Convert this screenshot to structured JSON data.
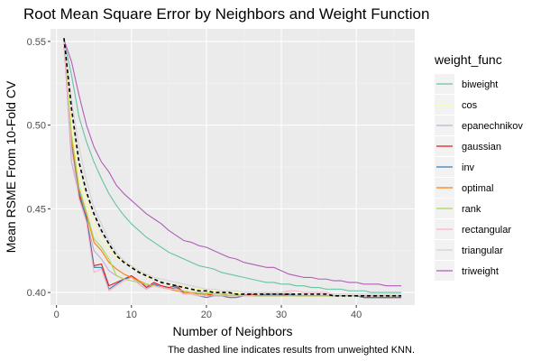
{
  "chart_data": {
    "type": "line",
    "title": "Root Mean Square Error by Neighbors and Weight Function",
    "xlabel": "Number of Neighbors",
    "ylabel": "Mean RSME From 10-Fold CV",
    "caption": "The dashed line indicates results from unweighted KNN.",
    "xlim": [
      -0.8,
      47.8
    ],
    "ylim": [
      0.3925,
      0.5575
    ],
    "x_ticks": [
      0,
      10,
      20,
      30,
      40
    ],
    "y_ticks": [
      0.4,
      0.45,
      0.5,
      0.55
    ],
    "x_tick_labels": [
      "0",
      "10",
      "20",
      "30",
      "40"
    ],
    "y_tick_labels": [
      "0.40",
      "0.45",
      "0.50",
      "0.55"
    ],
    "grid": true,
    "legend": {
      "title": "weight_func",
      "position": "right"
    },
    "x": [
      1,
      2,
      3,
      4,
      5,
      6,
      7,
      8,
      9,
      10,
      11,
      12,
      13,
      14,
      15,
      16,
      17,
      18,
      19,
      20,
      21,
      22,
      23,
      24,
      25,
      26,
      27,
      28,
      29,
      30,
      31,
      32,
      33,
      34,
      35,
      36,
      37,
      38,
      39,
      40,
      41,
      42,
      43,
      44,
      45,
      46
    ],
    "series": [
      {
        "name": "biweight",
        "color": "#66C2A5",
        "values": [
          0.551,
          0.53,
          0.505,
          0.49,
          0.478,
          0.468,
          0.459,
          0.452,
          0.446,
          0.441,
          0.437,
          0.433,
          0.43,
          0.427,
          0.424,
          0.422,
          0.42,
          0.418,
          0.416,
          0.415,
          0.414,
          0.412,
          0.411,
          0.41,
          0.409,
          0.408,
          0.407,
          0.406,
          0.406,
          0.405,
          0.405,
          0.404,
          0.404,
          0.403,
          0.403,
          0.402,
          0.402,
          0.402,
          0.401,
          0.401,
          0.401,
          0.4,
          0.4,
          0.4,
          0.4,
          0.4
        ]
      },
      {
        "name": "cos",
        "color": "#FFFF99",
        "values": [
          0.55,
          0.5,
          0.47,
          0.455,
          0.44,
          0.432,
          0.426,
          0.421,
          0.418,
          0.415,
          0.412,
          0.41,
          0.408,
          0.406,
          0.405,
          0.404,
          0.403,
          0.402,
          0.402,
          0.401,
          0.401,
          0.4,
          0.4,
          0.4,
          0.399,
          0.399,
          0.399,
          0.399,
          0.399,
          0.399,
          0.399,
          0.399,
          0.399,
          0.399,
          0.399,
          0.399,
          0.399,
          0.399,
          0.399,
          0.399,
          0.399,
          0.399,
          0.399,
          0.399,
          0.399,
          0.399
        ]
      },
      {
        "name": "epanechnikov",
        "color": "#BEAED4",
        "values": [
          0.549,
          0.478,
          0.458,
          0.443,
          0.425,
          0.42,
          0.413,
          0.41,
          0.408,
          0.41,
          0.406,
          0.404,
          0.405,
          0.404,
          0.402,
          0.403,
          0.4,
          0.4,
          0.4,
          0.398,
          0.399,
          0.399,
          0.398,
          0.398,
          0.399,
          0.398,
          0.398,
          0.399,
          0.398,
          0.399,
          0.399,
          0.398,
          0.398,
          0.398,
          0.398,
          0.398,
          0.398,
          0.398,
          0.398,
          0.398,
          0.397,
          0.398,
          0.397,
          0.397,
          0.398,
          0.397
        ]
      },
      {
        "name": "gaussian",
        "color": "#E41A1C",
        "values": [
          0.549,
          0.488,
          0.458,
          0.445,
          0.416,
          0.417,
          0.404,
          0.406,
          0.408,
          0.41,
          0.407,
          0.403,
          0.406,
          0.404,
          0.403,
          0.404,
          0.4,
          0.4,
          0.399,
          0.399,
          0.398,
          0.398,
          0.398,
          0.398,
          0.398,
          0.399,
          0.398,
          0.398,
          0.398,
          0.398,
          0.399,
          0.398,
          0.398,
          0.398,
          0.398,
          0.398,
          0.398,
          0.398,
          0.398,
          0.398,
          0.397,
          0.397,
          0.397,
          0.397,
          0.397,
          0.397
        ]
      },
      {
        "name": "inv",
        "color": "#377EB8",
        "values": [
          0.549,
          0.49,
          0.46,
          0.444,
          0.415,
          0.415,
          0.402,
          0.405,
          0.408,
          0.409,
          0.405,
          0.402,
          0.405,
          0.403,
          0.402,
          0.403,
          0.399,
          0.399,
          0.398,
          0.397,
          0.398,
          0.398,
          0.397,
          0.397,
          0.398,
          0.398,
          0.398,
          0.399,
          0.399,
          0.399,
          0.399,
          0.398,
          0.398,
          0.398,
          0.398,
          0.398,
          0.398,
          0.398,
          0.398,
          0.398,
          0.397,
          0.397,
          0.397,
          0.397,
          0.397,
          0.397
        ]
      },
      {
        "name": "optimal",
        "color": "#FF7F00",
        "values": [
          0.549,
          0.492,
          0.462,
          0.447,
          0.43,
          0.425,
          0.418,
          0.414,
          0.411,
          0.409,
          0.407,
          0.405,
          0.404,
          0.403,
          0.402,
          0.401,
          0.4,
          0.4,
          0.399,
          0.399,
          0.399,
          0.399,
          0.398,
          0.398,
          0.398,
          0.398,
          0.398,
          0.398,
          0.398,
          0.398,
          0.398,
          0.398,
          0.398,
          0.398,
          0.398,
          0.398,
          0.398,
          0.398,
          0.398,
          0.398,
          0.398,
          0.398,
          0.398,
          0.398,
          0.398,
          0.398
        ]
      },
      {
        "name": "rank",
        "color": "#A6D854",
        "values": [
          0.549,
          0.495,
          0.463,
          0.448,
          0.432,
          0.427,
          0.42,
          0.41,
          0.408,
          0.407,
          0.406,
          0.405,
          0.404,
          0.403,
          0.402,
          0.402,
          0.401,
          0.4,
          0.4,
          0.4,
          0.399,
          0.399,
          0.399,
          0.399,
          0.398,
          0.398,
          0.398,
          0.398,
          0.398,
          0.398,
          0.398,
          0.398,
          0.398,
          0.398,
          0.398,
          0.398,
          0.398,
          0.398,
          0.398,
          0.398,
          0.398,
          0.398,
          0.398,
          0.398,
          0.398,
          0.398
        ]
      },
      {
        "name": "rectangular",
        "color": "#FBB4C3",
        "values": [
          0.549,
          0.486,
          0.456,
          0.442,
          0.412,
          0.414,
          0.401,
          0.404,
          0.407,
          0.409,
          0.405,
          0.402,
          0.404,
          0.403,
          0.402,
          0.402,
          0.399,
          0.399,
          0.398,
          0.398,
          0.398,
          0.398,
          0.398,
          0.398,
          0.398,
          0.398,
          0.399,
          0.4,
          0.4,
          0.4,
          0.401,
          0.401,
          0.4,
          0.4,
          0.4,
          0.4,
          0.399,
          0.399,
          0.399,
          0.399,
          0.399,
          0.399,
          0.399,
          0.399,
          0.399,
          0.399
        ]
      },
      {
        "name": "triangular",
        "color": "#D3D3D3",
        "values": [
          0.55,
          0.515,
          0.487,
          0.467,
          0.451,
          0.441,
          0.431,
          0.424,
          0.419,
          0.416,
          0.413,
          0.411,
          0.409,
          0.408,
          0.407,
          0.406,
          0.405,
          0.404,
          0.403,
          0.402,
          0.402,
          0.401,
          0.401,
          0.401,
          0.4,
          0.4,
          0.4,
          0.4,
          0.4,
          0.4,
          0.4,
          0.399,
          0.399,
          0.399,
          0.399,
          0.399,
          0.399,
          0.399,
          0.399,
          0.399,
          0.399,
          0.399,
          0.399,
          0.399,
          0.399,
          0.399
        ]
      },
      {
        "name": "triweight",
        "color": "#B15DB8",
        "values": [
          0.551,
          0.538,
          0.518,
          0.5,
          0.487,
          0.478,
          0.472,
          0.464,
          0.459,
          0.455,
          0.451,
          0.447,
          0.444,
          0.441,
          0.437,
          0.434,
          0.431,
          0.43,
          0.428,
          0.427,
          0.425,
          0.423,
          0.421,
          0.42,
          0.418,
          0.417,
          0.416,
          0.415,
          0.415,
          0.413,
          0.411,
          0.41,
          0.409,
          0.409,
          0.408,
          0.408,
          0.407,
          0.407,
          0.406,
          0.406,
          0.405,
          0.405,
          0.405,
          0.404,
          0.404,
          0.404
        ]
      }
    ],
    "reference": {
      "label": "The dashed line indicates results from unweighted KNN.",
      "color": "#000000",
      "style": "dashed",
      "values": [
        0.552,
        0.51,
        0.478,
        0.46,
        0.447,
        0.437,
        0.429,
        0.422,
        0.418,
        0.415,
        0.412,
        0.41,
        0.408,
        0.406,
        0.405,
        0.404,
        0.403,
        0.402,
        0.401,
        0.401,
        0.4,
        0.4,
        0.4,
        0.399,
        0.399,
        0.399,
        0.399,
        0.399,
        0.399,
        0.399,
        0.399,
        0.399,
        0.399,
        0.399,
        0.399,
        0.399,
        0.398,
        0.398,
        0.398,
        0.398,
        0.398,
        0.398,
        0.398,
        0.398,
        0.398,
        0.398
      ]
    }
  }
}
